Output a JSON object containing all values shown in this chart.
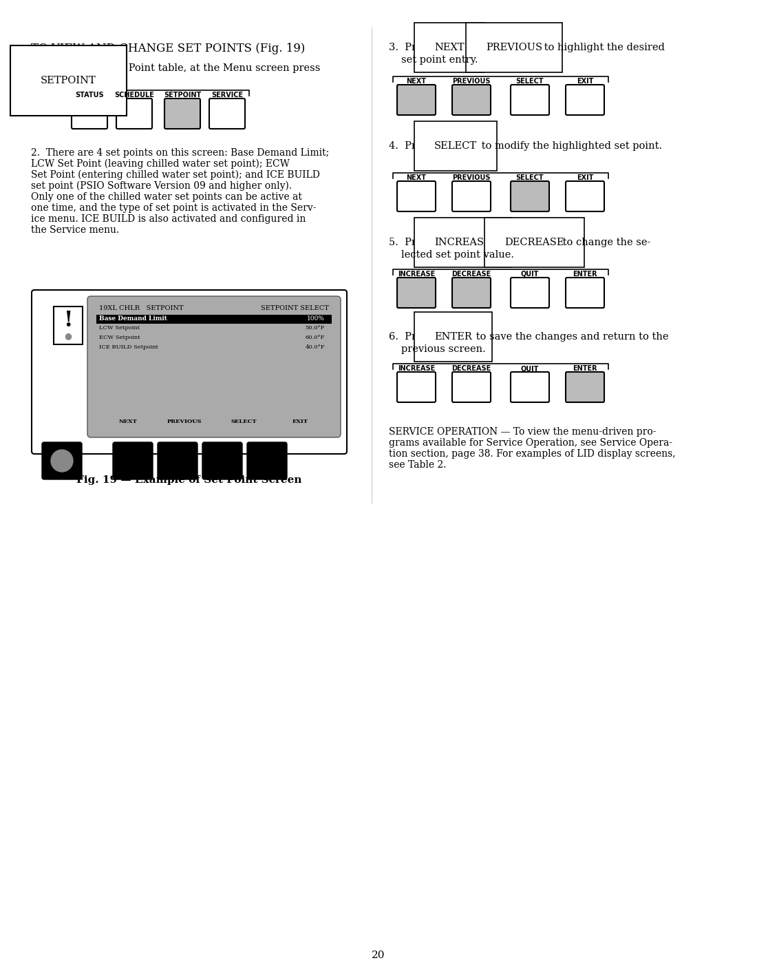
{
  "bg_color": "#ffffff",
  "page_number": "20",
  "title": "TO VIEW AND CHANGE SET POINTS (Fig. 19)",
  "section1_header": "1.  To view the Set Point table, at the Menu screen press",
  "setpoint_box_label": "SETPOINT",
  "nav_labels_1": [
    "STATUS",
    "SCHEDULE",
    "SETPOINT",
    "SERVICE"
  ],
  "nav_active_1": [
    2
  ],
  "section2_text": [
    "2.  There are 4 set points on this screen: Base Demand Limit;",
    "LCW Set Point (leaving chilled water set point); ECW",
    "Set Point (entering chilled water set point); and ICE BUILD",
    "set point (PSIO Software Version 09 and higher only).",
    "Only one of the chilled water set points can be active at",
    "one time, and the type of set point is activated in the Serv-",
    "ice menu. ICE BUILD is also activated and configured in",
    "the Service menu."
  ],
  "section3_text": "3.  Press  NEXT  or  PREVIOUS  to highlight the desired\n    set point entry.",
  "section3_inline": [
    [
      "NEXT",
      "PREVIOUS"
    ],
    [
      "to highlight the desired",
      "set point entry."
    ]
  ],
  "nav_labels_3": [
    "NEXT",
    "PREVIOUS",
    "SELECT",
    "EXIT"
  ],
  "nav_active_3": [
    0,
    1
  ],
  "section4_text": "4.  Press  SELECT  to modify the highlighted set point.",
  "nav_labels_4": [
    "NEXT",
    "PREVIOUS",
    "SELECT",
    "EXIT"
  ],
  "nav_active_4": [
    2
  ],
  "section5_text_1": "5.  Press  INCREASE  or  DECREASE  to change the se-",
  "section5_text_2": "    lected set point value.",
  "nav_labels_5": [
    "INCREASE",
    "DECREASE",
    "QUIT",
    "ENTER"
  ],
  "nav_active_5": [
    0,
    1
  ],
  "section6_text_1": "6.  Press  ENTER  to save the changes and return to the",
  "section6_text_2": "    previous screen.",
  "nav_labels_6": [
    "INCREASE",
    "DECREASE",
    "QUIT",
    "ENTER"
  ],
  "nav_active_6": [
    3
  ],
  "service_op_text": [
    "SERVICE OPERATION — To view the menu-driven pro-",
    "grams available for Service Operation, see Service Opera-",
    "tion section, page 38. For examples of LID display screens,",
    "see Table 2."
  ],
  "fig_caption": "Fig. 19 — Example of Set Point Screen",
  "screen_title_left": "19XL CHLR   SETPOINT",
  "screen_title_right": "SETPOINT SELECT",
  "screen_rows": [
    [
      "Base Demand Limit",
      "100%"
    ],
    [
      "LCW Setpoint",
      "50.0°F"
    ],
    [
      "ECW Setpoint",
      "60.0°F"
    ],
    [
      "ICE BUILD Setpoint",
      "40.0°F"
    ]
  ],
  "screen_nav": [
    "NEXT",
    "PREVIOUS",
    "SELECT",
    "EXIT"
  ],
  "gray_light": "#aaaaaa",
  "gray_medium": "#888888",
  "gray_dark": "#555555",
  "black": "#000000",
  "white": "#ffffff"
}
